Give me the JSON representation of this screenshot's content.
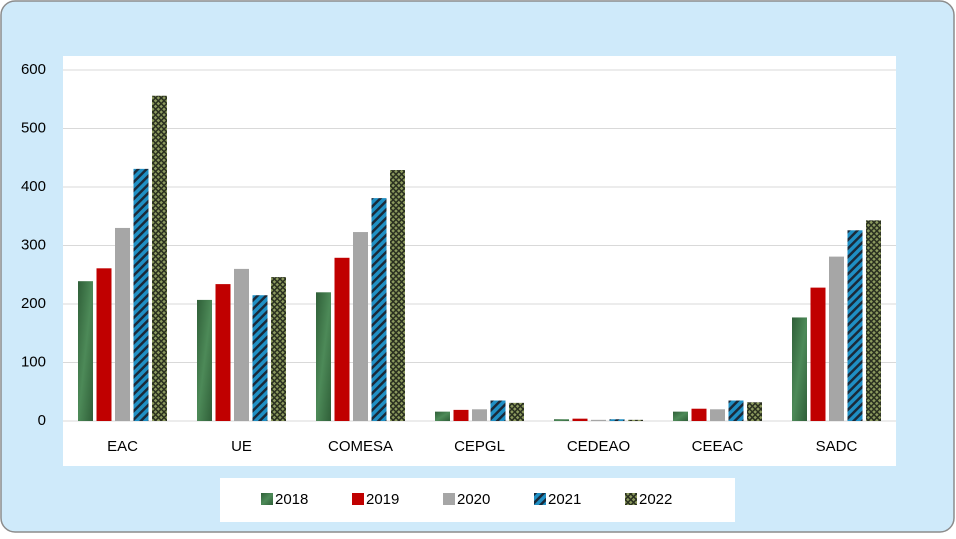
{
  "chart_data": {
    "type": "bar",
    "categories": [
      "EAC",
      "UE",
      "COMESA",
      "CEPGL",
      "CEDEAO",
      "CEEAC",
      "SADC"
    ],
    "series": [
      {
        "name": "2018",
        "color": "#2f5f38",
        "values": [
          239,
          207,
          220,
          16,
          3,
          16,
          177
        ]
      },
      {
        "name": "2019",
        "color": "#c00000",
        "values": [
          261,
          234,
          279,
          19,
          4,
          21,
          228
        ]
      },
      {
        "name": "2020",
        "color": "#a6a6a6",
        "values": [
          330,
          260,
          323,
          20,
          2,
          20,
          281
        ]
      },
      {
        "name": "2021",
        "color": "#1f8fc4",
        "values": [
          431,
          215,
          381,
          35,
          3,
          35,
          326
        ]
      },
      {
        "name": "2022",
        "color": "#8c9a5e",
        "values": [
          556,
          246,
          429,
          31,
          2,
          32,
          343
        ]
      }
    ],
    "ylim": [
      0,
      600
    ],
    "yticks": [
      0,
      100,
      200,
      300,
      400,
      500,
      600
    ],
    "grid": true,
    "legend": "bottom"
  }
}
